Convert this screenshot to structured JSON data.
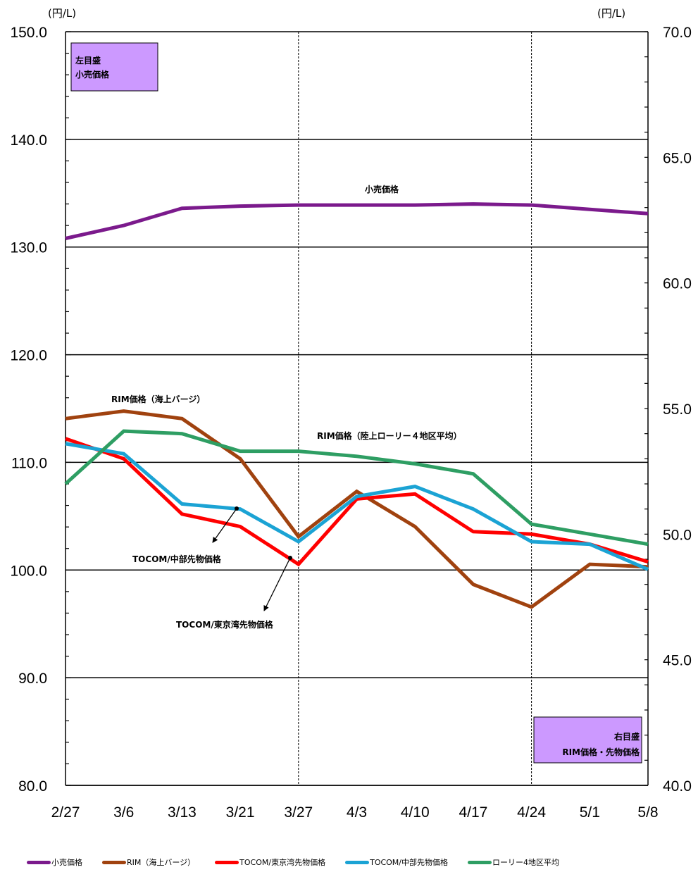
{
  "chart_data": {
    "type": "line",
    "categories": [
      "2/27",
      "3/6",
      "3/13",
      "3/21",
      "3/27",
      "4/3",
      "4/10",
      "4/17",
      "4/24",
      "5/1",
      "5/8"
    ],
    "left_axis": {
      "unit": "(円/L)",
      "ylim": [
        80,
        150
      ],
      "ticks": [
        "80.0",
        "90.0",
        "100.0",
        "110.0",
        "120.0",
        "130.0",
        "140.0",
        "150.0"
      ]
    },
    "right_axis": {
      "unit": "(円/L)",
      "ylim": [
        40,
        70
      ],
      "ticks": [
        "40.0",
        "45.0",
        "50.0",
        "55.0",
        "60.0",
        "65.0",
        "70.0"
      ]
    },
    "series": [
      {
        "name": "小売価格",
        "axis": "left",
        "color": "#7b1a8c",
        "values": [
          130.8,
          132.0,
          133.6,
          133.8,
          133.9,
          133.9,
          133.9,
          134.0,
          133.9,
          133.5,
          133.1
        ]
      },
      {
        "name": "RIM（海上バージ）",
        "axis": "right",
        "color": "#a0420f",
        "values": [
          54.6,
          54.9,
          54.6,
          53.0,
          49.9,
          51.7,
          50.3,
          48.0,
          47.1,
          48.8,
          48.7
        ]
      },
      {
        "name": "TOCOM/東京湾先物価格",
        "axis": "right",
        "color": "#ff0000",
        "values": [
          53.8,
          53.0,
          50.8,
          50.3,
          48.8,
          51.4,
          51.6,
          50.1,
          50.0,
          49.6,
          48.9
        ]
      },
      {
        "name": "TOCOM/中部先物価格",
        "axis": "right",
        "color": "#1ba3d4",
        "values": [
          53.6,
          53.2,
          51.2,
          51.0,
          49.7,
          51.5,
          51.9,
          51.0,
          49.7,
          49.6,
          48.6
        ]
      },
      {
        "name": "ローリー4地区平均",
        "axis": "right",
        "color": "#2e9e63",
        "values": [
          52.0,
          54.1,
          54.0,
          53.3,
          53.3,
          53.1,
          52.8,
          52.4,
          50.4,
          50.0,
          49.6
        ]
      }
    ],
    "annotations": {
      "retail": "小売価格",
      "rim_barge": "RIM価格（海上バージ）",
      "rim_lorry": "RIM価格（陸上ローリー４地区平均）",
      "tocom_chubu": "TOCOM/中部先物価格",
      "tocom_tokyo": "TOCOM/東京湾先物価格"
    },
    "left_box": {
      "line1": "左目盛",
      "line2": "小売価格",
      "color": "#cc99ff"
    },
    "right_box": {
      "line1": "右目盛",
      "line2": "RIM価格・先物価格",
      "color": "#cc99ff"
    },
    "grid": true,
    "vertical_dashed_at": [
      "3/27",
      "4/24"
    ]
  }
}
